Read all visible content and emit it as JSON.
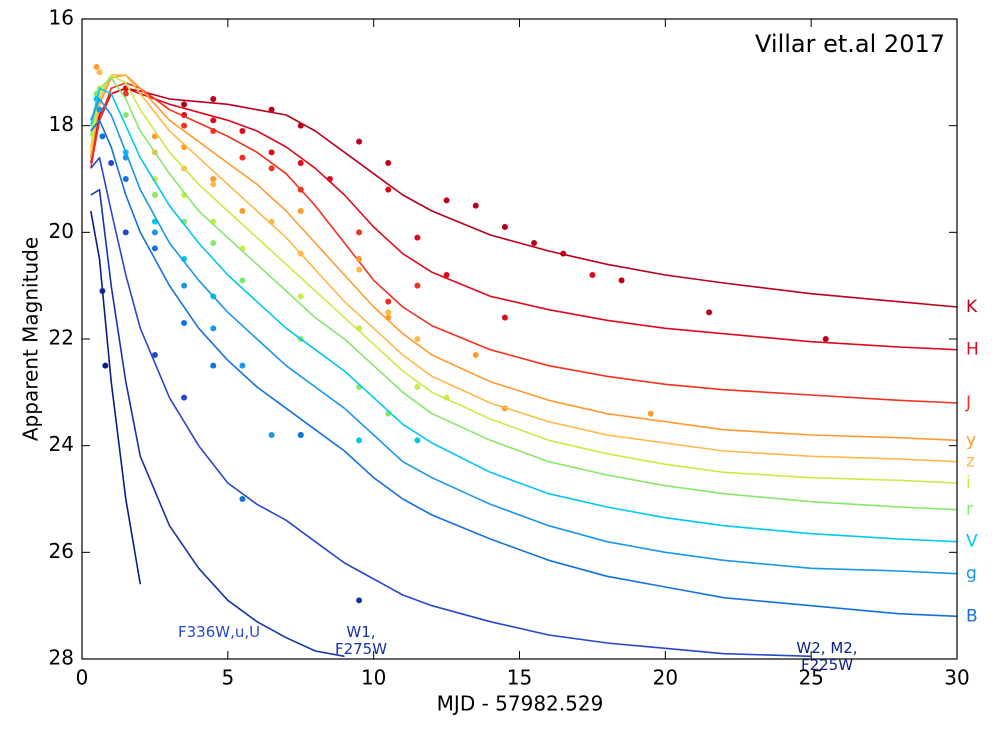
{
  "chart_data": {
    "type": "line",
    "annotation": "Villar et.al 2017",
    "x_label": "MJD - 57982.529",
    "y_label": "Apparent Magnitude",
    "xlim": [
      0,
      30
    ],
    "ylim": [
      16,
      28
    ],
    "y_inverted": true,
    "xticks": [
      0,
      5,
      10,
      15,
      20,
      25,
      30
    ],
    "yticks": [
      16,
      18,
      20,
      22,
      24,
      26,
      28
    ],
    "x": [
      0.3,
      0.6,
      1,
      1.5,
      2,
      3,
      4,
      5,
      6,
      7,
      8,
      9,
      10,
      11,
      12,
      14,
      16,
      18,
      20,
      22,
      25,
      28,
      30
    ],
    "series": [
      {
        "name": "K",
        "color": "#b8001c",
        "values": [
          18.6,
          17.8,
          17.4,
          17.3,
          17.35,
          17.5,
          17.55,
          17.6,
          17.7,
          17.8,
          18.1,
          18.5,
          18.9,
          19.3,
          19.6,
          20.05,
          20.35,
          20.6,
          20.8,
          20.95,
          21.15,
          21.3,
          21.4
        ],
        "obs_x": [
          3.5,
          4.5,
          6.5,
          7.5,
          9.5,
          10.5,
          12.5,
          13.5,
          14.5,
          15.5,
          16.5,
          18.5,
          21.5,
          25.5
        ],
        "obs_values": [
          17.6,
          17.5,
          17.7,
          18.0,
          18.3,
          18.7,
          19.4,
          19.5,
          19.9,
          20.2,
          20.4,
          20.9,
          21.5,
          22.0
        ]
      },
      {
        "name": "H",
        "color": "#dd0a1e",
        "values": [
          18.7,
          17.9,
          17.4,
          17.3,
          17.4,
          17.6,
          17.75,
          17.9,
          18.1,
          18.4,
          18.8,
          19.3,
          19.9,
          20.4,
          20.75,
          21.2,
          21.45,
          21.65,
          21.8,
          21.9,
          22.05,
          22.15,
          22.2
        ],
        "obs_x": [
          1.5,
          3.5,
          4.5,
          5.5,
          6.5,
          7.5,
          8.5,
          10.5,
          11.5,
          12.5,
          14.5,
          17.5
        ],
        "obs_values": [
          17.3,
          17.8,
          17.9,
          18.1,
          18.5,
          18.7,
          19.0,
          19.2,
          20.1,
          20.8,
          21.6,
          20.8
        ]
      },
      {
        "name": "J",
        "color": "#f0321e",
        "values": [
          18.8,
          17.9,
          17.3,
          17.2,
          17.3,
          17.7,
          17.95,
          18.2,
          18.5,
          18.9,
          19.5,
          20.2,
          20.9,
          21.4,
          21.75,
          22.2,
          22.5,
          22.7,
          22.85,
          22.95,
          23.05,
          23.15,
          23.2
        ],
        "obs_x": [
          1.5,
          3.5,
          4.5,
          5.5,
          6.5,
          7.5,
          9.5,
          10.5,
          11.5
        ],
        "obs_values": [
          17.4,
          18.0,
          18.1,
          18.6,
          18.8,
          19.2,
          20.0,
          21.3,
          21.0
        ]
      },
      {
        "name": "y",
        "color": "#ff9a2e",
        "values": [
          18.6,
          17.6,
          17.1,
          17.05,
          17.3,
          17.9,
          18.3,
          18.7,
          19.1,
          19.6,
          20.2,
          20.8,
          21.4,
          21.9,
          22.3,
          22.8,
          23.15,
          23.4,
          23.55,
          23.7,
          23.8,
          23.85,
          23.9
        ],
        "obs_x": [
          0.5,
          2.5,
          3.5,
          4.5,
          5.5,
          7.5,
          9.5,
          10.5,
          13.5,
          14.5,
          19.5
        ],
        "obs_values": [
          16.9,
          18.2,
          18.4,
          19.0,
          19.6,
          19.6,
          20.5,
          21.6,
          22.3,
          23.3,
          23.4
        ]
      },
      {
        "name": "z",
        "color": "#ffb84a",
        "values": [
          18.5,
          17.5,
          17.05,
          17.05,
          17.4,
          18.1,
          18.6,
          19.1,
          19.6,
          20.1,
          20.7,
          21.3,
          21.8,
          22.3,
          22.7,
          23.2,
          23.55,
          23.8,
          23.95,
          24.1,
          24.2,
          24.25,
          24.3
        ],
        "obs_x": [
          0.6,
          2.5,
          3.5,
          4.5,
          6.5,
          7.5,
          9.5,
          10.5,
          11.5
        ],
        "obs_values": [
          17.0,
          18.5,
          18.8,
          19.1,
          19.8,
          20.4,
          20.7,
          21.5,
          22.0
        ]
      },
      {
        "name": "i",
        "color": "#c8ec46",
        "values": [
          18.4,
          17.4,
          17.05,
          17.2,
          17.7,
          18.5,
          19.1,
          19.6,
          20.1,
          20.6,
          21.1,
          21.6,
          22.1,
          22.6,
          23.0,
          23.5,
          23.9,
          24.15,
          24.35,
          24.5,
          24.6,
          24.65,
          24.7
        ],
        "obs_x": [
          0.6,
          2.5,
          3.5,
          4.5,
          5.5,
          7.5,
          9.5,
          11.5,
          12.5
        ],
        "obs_values": [
          17.3,
          19.0,
          19.3,
          19.8,
          20.3,
          21.2,
          21.8,
          22.9,
          23.1
        ]
      },
      {
        "name": "r",
        "color": "#86e86a",
        "values": [
          18.2,
          17.3,
          17.1,
          17.5,
          18.1,
          18.9,
          19.6,
          20.1,
          20.6,
          21.1,
          21.6,
          22.0,
          22.5,
          23.0,
          23.4,
          23.9,
          24.3,
          24.55,
          24.75,
          24.9,
          25.05,
          25.15,
          25.2
        ],
        "obs_x": [
          0.5,
          1.5,
          2.5,
          3.5,
          4.5,
          5.5,
          7.5,
          9.5,
          10.5
        ],
        "obs_values": [
          17.4,
          17.8,
          19.3,
          19.8,
          20.2,
          20.9,
          22.0,
          22.9,
          23.4
        ]
      },
      {
        "name": "V",
        "color": "#00c8ee",
        "values": [
          18.0,
          17.3,
          17.4,
          18.0,
          18.6,
          19.5,
          20.2,
          20.8,
          21.3,
          21.8,
          22.2,
          22.6,
          23.1,
          23.6,
          23.95,
          24.5,
          24.9,
          25.15,
          25.35,
          25.5,
          25.65,
          25.75,
          25.8
        ],
        "obs_x": [
          0.5,
          1.5,
          2.5,
          3.5,
          4.5,
          9.5,
          11.5
        ],
        "obs_values": [
          17.5,
          18.5,
          19.8,
          20.5,
          21.2,
          23.9,
          23.9
        ]
      },
      {
        "name": "g",
        "color": "#1898ea",
        "values": [
          17.9,
          17.5,
          17.8,
          18.5,
          19.2,
          20.2,
          20.9,
          21.5,
          22.0,
          22.5,
          22.9,
          23.3,
          23.8,
          24.3,
          24.6,
          25.1,
          25.5,
          25.8,
          26.0,
          26.15,
          26.3,
          26.35,
          26.4
        ],
        "obs_x": [
          0.6,
          1.5,
          2.5,
          3.5,
          4.5,
          5.5,
          6.5,
          7.5
        ],
        "obs_values": [
          17.7,
          18.6,
          20.0,
          21.0,
          21.8,
          22.5,
          23.8,
          23.8
        ]
      },
      {
        "name": "B",
        "color": "#1472dc",
        "values": [
          18.1,
          17.9,
          18.4,
          19.3,
          20.0,
          21.0,
          21.8,
          22.4,
          22.9,
          23.3,
          23.7,
          24.1,
          24.6,
          25.0,
          25.3,
          25.75,
          26.15,
          26.45,
          26.65,
          26.85,
          27.0,
          27.15,
          27.2
        ],
        "obs_x": [
          0.7,
          1.5,
          2.5,
          3.5,
          4.5,
          5.5,
          7.5
        ],
        "obs_values": [
          18.2,
          19.0,
          20.3,
          21.7,
          22.5,
          25.0,
          23.8
        ]
      },
      {
        "name": "F336W,u,U",
        "color": "#2848cc",
        "values": [
          18.8,
          18.6,
          19.6,
          20.8,
          21.8,
          23.1,
          24.0,
          24.7,
          25.1,
          25.4,
          25.8,
          26.2,
          26.5,
          26.8,
          27.0,
          27.3,
          27.55,
          27.7,
          27.8,
          27.9,
          27.95,
          null,
          null
        ],
        "obs_x": [
          1.0,
          1.5,
          2.5,
          3.5
        ],
        "obs_values": [
          18.7,
          20.0,
          22.3,
          23.1
        ]
      },
      {
        "name": "W1, F275W",
        "color": "#1634aa",
        "values": [
          19.3,
          19.2,
          21.0,
          22.8,
          24.2,
          25.5,
          26.3,
          26.9,
          27.3,
          27.6,
          27.85,
          27.95,
          null,
          null,
          null,
          null,
          null,
          null,
          null,
          null,
          null,
          null,
          null
        ],
        "obs_x": [
          0.7,
          9.5
        ],
        "obs_values": [
          21.1,
          26.9
        ]
      },
      {
        "name": "W2, M2, F225W",
        "color": "#0c1c88",
        "values": [
          19.6,
          20.5,
          22.8,
          25.0,
          26.6,
          null,
          null,
          null,
          null,
          null,
          null,
          null,
          null,
          null,
          null,
          null,
          null,
          null,
          null,
          null,
          null,
          null,
          null
        ],
        "obs_x": [
          0.8
        ],
        "obs_values": [
          22.5
        ]
      }
    ]
  }
}
